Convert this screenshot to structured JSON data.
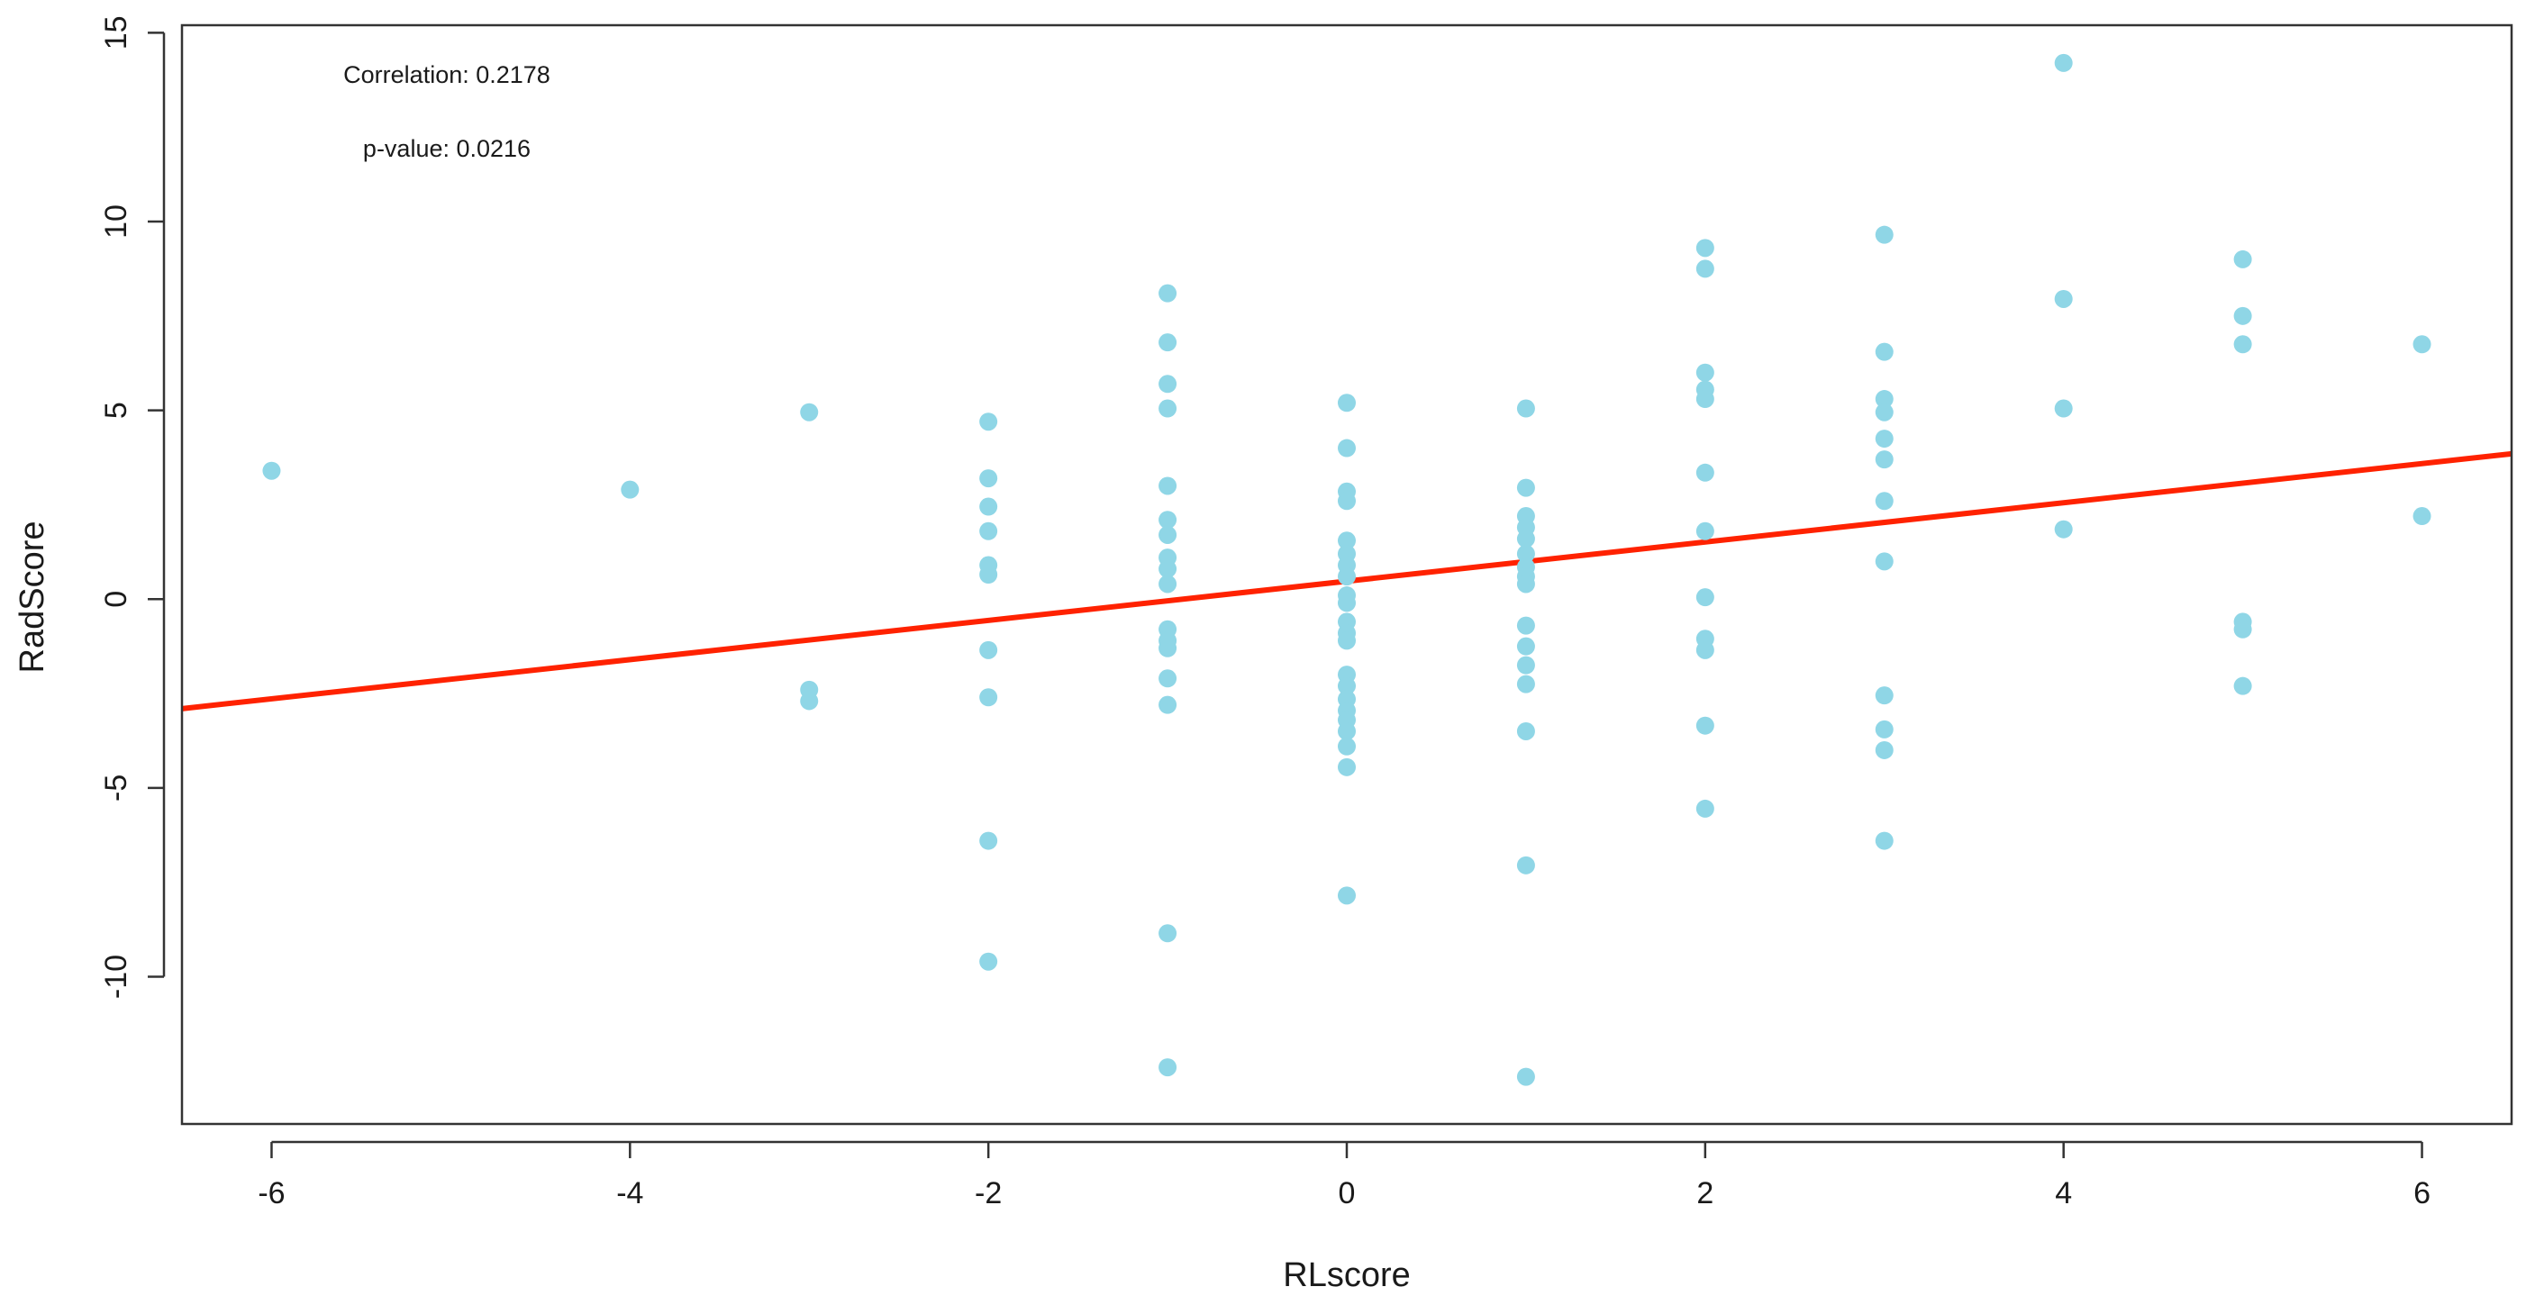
{
  "chart_data": {
    "type": "scatter",
    "title": "",
    "xlabel": "RLscore",
    "ylabel": "RadScore",
    "xlim": [
      -6.5,
      6.5
    ],
    "ylim": [
      -13.9,
      15.2
    ],
    "x_ticks": [
      -6,
      -4,
      -2,
      0,
      2,
      4,
      6
    ],
    "x_tick_labels": [
      "-6",
      "-4",
      "-2",
      "0",
      "2",
      "4",
      "6"
    ],
    "y_ticks": [
      -10,
      -5,
      0,
      5,
      10,
      15
    ],
    "y_tick_labels": [
      "-10",
      "-5",
      "0",
      "5",
      "10",
      "15"
    ],
    "grid": false,
    "point_color": "#8fd6e6",
    "line_color": "#ff2200",
    "annotations": [
      {
        "text": "Correlation: 0.2178"
      },
      {
        "text": "p-value: 0.0216"
      }
    ],
    "regression_line": {
      "x": [
        -6.5,
        6.5
      ],
      "y": [
        -2.9,
        3.85
      ]
    },
    "points": [
      {
        "x": -6,
        "y": 3.4
      },
      {
        "x": -4,
        "y": 2.9
      },
      {
        "x": -3,
        "y": 4.95
      },
      {
        "x": -3,
        "y": -2.4
      },
      {
        "x": -3,
        "y": -2.7
      },
      {
        "x": -2,
        "y": 4.7
      },
      {
        "x": -2,
        "y": 3.2
      },
      {
        "x": -2,
        "y": 2.45
      },
      {
        "x": -2,
        "y": 1.8
      },
      {
        "x": -2,
        "y": 0.9
      },
      {
        "x": -2,
        "y": 0.65
      },
      {
        "x": -2,
        "y": -1.35
      },
      {
        "x": -2,
        "y": -2.6
      },
      {
        "x": -2,
        "y": -6.4
      },
      {
        "x": -2,
        "y": -9.6
      },
      {
        "x": -1,
        "y": 8.1
      },
      {
        "x": -1,
        "y": 6.8
      },
      {
        "x": -1,
        "y": 5.7
      },
      {
        "x": -1,
        "y": 5.05
      },
      {
        "x": -1,
        "y": 3.0
      },
      {
        "x": -1,
        "y": 2.1
      },
      {
        "x": -1,
        "y": 1.7
      },
      {
        "x": -1,
        "y": 1.1
      },
      {
        "x": -1,
        "y": 0.8
      },
      {
        "x": -1,
        "y": 0.4
      },
      {
        "x": -1,
        "y": -0.8
      },
      {
        "x": -1,
        "y": -1.1
      },
      {
        "x": -1,
        "y": -1.3
      },
      {
        "x": -1,
        "y": -2.1
      },
      {
        "x": -1,
        "y": -2.8
      },
      {
        "x": -1,
        "y": -8.85
      },
      {
        "x": -1,
        "y": -12.4
      },
      {
        "x": 0,
        "y": 5.2
      },
      {
        "x": 0,
        "y": 4.0
      },
      {
        "x": 0,
        "y": 2.85
      },
      {
        "x": 0,
        "y": 2.6
      },
      {
        "x": 0,
        "y": 1.55
      },
      {
        "x": 0,
        "y": 1.2
      },
      {
        "x": 0,
        "y": 0.9
      },
      {
        "x": 0,
        "y": 0.6
      },
      {
        "x": 0,
        "y": 0.1
      },
      {
        "x": 0,
        "y": -0.1
      },
      {
        "x": 0,
        "y": -0.6
      },
      {
        "x": 0,
        "y": -0.9
      },
      {
        "x": 0,
        "y": -1.1
      },
      {
        "x": 0,
        "y": -2.0
      },
      {
        "x": 0,
        "y": -2.3
      },
      {
        "x": 0,
        "y": -2.65
      },
      {
        "x": 0,
        "y": -2.95
      },
      {
        "x": 0,
        "y": -3.2
      },
      {
        "x": 0,
        "y": -3.5
      },
      {
        "x": 0,
        "y": -3.9
      },
      {
        "x": 0,
        "y": -4.45
      },
      {
        "x": 0,
        "y": -7.85
      },
      {
        "x": 1,
        "y": 5.05
      },
      {
        "x": 1,
        "y": 2.95
      },
      {
        "x": 1,
        "y": 2.2
      },
      {
        "x": 1,
        "y": 1.9
      },
      {
        "x": 1,
        "y": 1.6
      },
      {
        "x": 1,
        "y": 1.2
      },
      {
        "x": 1,
        "y": 0.85
      },
      {
        "x": 1,
        "y": 0.6
      },
      {
        "x": 1,
        "y": 0.4
      },
      {
        "x": 1,
        "y": -0.7
      },
      {
        "x": 1,
        "y": -1.25
      },
      {
        "x": 1,
        "y": -1.75
      },
      {
        "x": 1,
        "y": -2.25
      },
      {
        "x": 1,
        "y": -3.5
      },
      {
        "x": 1,
        "y": -7.05
      },
      {
        "x": 1,
        "y": -12.65
      },
      {
        "x": 2,
        "y": 9.3
      },
      {
        "x": 2,
        "y": 8.75
      },
      {
        "x": 2,
        "y": 6.0
      },
      {
        "x": 2,
        "y": 5.55
      },
      {
        "x": 2,
        "y": 5.3
      },
      {
        "x": 2,
        "y": 3.35
      },
      {
        "x": 2,
        "y": 1.8
      },
      {
        "x": 2,
        "y": 0.05
      },
      {
        "x": 2,
        "y": -1.05
      },
      {
        "x": 2,
        "y": -1.35
      },
      {
        "x": 2,
        "y": -3.35
      },
      {
        "x": 2,
        "y": -5.55
      },
      {
        "x": 3,
        "y": 9.65
      },
      {
        "x": 3,
        "y": 6.55
      },
      {
        "x": 3,
        "y": 5.3
      },
      {
        "x": 3,
        "y": 4.95
      },
      {
        "x": 3,
        "y": 4.25
      },
      {
        "x": 3,
        "y": 3.7
      },
      {
        "x": 3,
        "y": 2.6
      },
      {
        "x": 3,
        "y": 1.0
      },
      {
        "x": 3,
        "y": -2.55
      },
      {
        "x": 3,
        "y": -3.45
      },
      {
        "x": 3,
        "y": -4.0
      },
      {
        "x": 3,
        "y": -6.4
      },
      {
        "x": 4,
        "y": 14.2
      },
      {
        "x": 4,
        "y": 7.95
      },
      {
        "x": 4,
        "y": 5.05
      },
      {
        "x": 4,
        "y": 1.85
      },
      {
        "x": 5,
        "y": 9.0
      },
      {
        "x": 5,
        "y": 7.5
      },
      {
        "x": 5,
        "y": 6.75
      },
      {
        "x": 5,
        "y": -0.6
      },
      {
        "x": 5,
        "y": -0.8
      },
      {
        "x": 5,
        "y": -2.3
      },
      {
        "x": 6,
        "y": 6.75
      },
      {
        "x": 6,
        "y": 2.2
      }
    ]
  }
}
